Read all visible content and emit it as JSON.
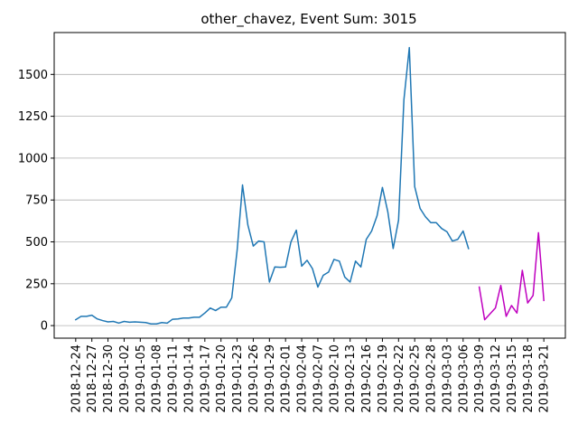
{
  "chart_data": {
    "type": "line",
    "title": "other_chavez, Event Sum: 3015",
    "xlabel": "",
    "ylabel": "",
    "grid": "y",
    "ylim": [
      -75,
      1750
    ],
    "yticks": [
      0,
      250,
      500,
      750,
      1000,
      1250,
      1500
    ],
    "xticks": [
      "2018-12-24",
      "2018-12-27",
      "2018-12-30",
      "2019-01-02",
      "2019-01-05",
      "2019-01-08",
      "2019-01-11",
      "2019-01-14",
      "2019-01-17",
      "2019-01-20",
      "2019-01-23",
      "2019-01-26",
      "2019-01-29",
      "2019-02-01",
      "2019-02-04",
      "2019-02-07",
      "2019-02-10",
      "2019-02-13",
      "2019-02-16",
      "2019-02-19",
      "2019-02-22",
      "2019-02-25",
      "2019-02-28",
      "2019-03-03",
      "2019-03-06",
      "2019-03-09",
      "2019-03-12",
      "2019-03-15",
      "2019-03-18",
      "2019-03-21"
    ],
    "xlim": [
      "2018-12-20",
      "2019-03-25"
    ],
    "series": [
      {
        "color": "#1f77b4",
        "x": [
          "2018-12-24",
          "2018-12-25",
          "2018-12-26",
          "2018-12-27",
          "2018-12-28",
          "2018-12-29",
          "2018-12-30",
          "2018-12-31",
          "2019-01-01",
          "2019-01-02",
          "2019-01-03",
          "2019-01-04",
          "2019-01-05",
          "2019-01-06",
          "2019-01-07",
          "2019-01-08",
          "2019-01-09",
          "2019-01-10",
          "2019-01-11",
          "2019-01-12",
          "2019-01-13",
          "2019-01-14",
          "2019-01-15",
          "2019-01-16",
          "2019-01-17",
          "2019-01-18",
          "2019-01-19",
          "2019-01-20",
          "2019-01-21",
          "2019-01-22",
          "2019-01-23",
          "2019-01-24",
          "2019-01-25",
          "2019-01-26",
          "2019-01-27",
          "2019-01-28",
          "2019-01-29",
          "2019-01-30",
          "2019-01-31",
          "2019-02-01",
          "2019-02-02",
          "2019-02-03",
          "2019-02-04",
          "2019-02-05",
          "2019-02-06",
          "2019-02-07",
          "2019-02-08",
          "2019-02-09",
          "2019-02-10",
          "2019-02-11",
          "2019-02-12",
          "2019-02-13",
          "2019-02-14",
          "2019-02-15",
          "2019-02-16",
          "2019-02-17",
          "2019-02-18",
          "2019-02-19",
          "2019-02-20",
          "2019-02-21",
          "2019-02-22",
          "2019-02-23",
          "2019-02-24",
          "2019-02-25",
          "2019-02-26",
          "2019-02-27",
          "2019-02-28",
          "2019-03-01",
          "2019-03-02",
          "2019-03-03",
          "2019-03-04",
          "2019-03-05",
          "2019-03-06",
          "2019-03-07"
        ],
        "values": [
          35,
          55,
          55,
          62,
          40,
          30,
          22,
          25,
          15,
          25,
          20,
          22,
          20,
          18,
          10,
          10,
          18,
          15,
          38,
          40,
          45,
          45,
          50,
          50,
          75,
          105,
          90,
          110,
          110,
          165,
          450,
          840,
          600,
          475,
          505,
          500,
          260,
          350,
          348,
          350,
          500,
          570,
          355,
          390,
          340,
          230,
          300,
          320,
          395,
          385,
          290,
          260,
          385,
          350,
          515,
          565,
          655,
          825,
          680,
          460,
          630,
          1350,
          1660,
          830,
          700,
          650,
          615,
          615,
          580,
          560,
          505,
          515,
          565,
          460
        ]
      },
      {
        "color": "#bf00bf",
        "x": [
          "2019-03-09",
          "2019-03-10",
          "2019-03-12",
          "2019-03-13",
          "2019-03-14",
          "2019-03-15",
          "2019-03-16",
          "2019-03-17",
          "2019-03-18",
          "2019-03-19",
          "2019-03-20",
          "2019-03-21"
        ],
        "values": [
          230,
          35,
          105,
          240,
          55,
          120,
          75,
          330,
          135,
          180,
          555,
          150
        ]
      }
    ]
  }
}
